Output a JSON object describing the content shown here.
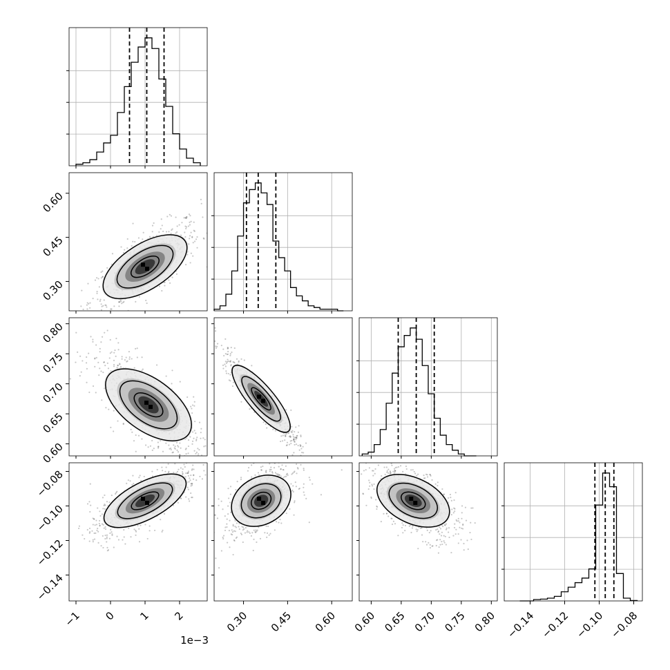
{
  "chart_data": {
    "type": "corner",
    "title": "",
    "grid": true,
    "parameters": [
      {
        "range": [
          -1.2,
          2.8
        ],
        "ticks": [
          -1,
          0,
          1,
          2
        ],
        "tick_labels": [
          "−1",
          "0",
          "1",
          "2"
        ],
        "offset_label": "1e−3"
      },
      {
        "range": [
          0.2,
          0.67
        ],
        "ticks": [
          0.3,
          0.45,
          0.6
        ],
        "tick_labels": [
          "0.30",
          "0.45",
          "0.60"
        ]
      },
      {
        "range": [
          0.58,
          0.81
        ],
        "ticks": [
          0.6,
          0.65,
          0.7,
          0.75,
          0.8
        ],
        "tick_labels": [
          "0.60",
          "0.65",
          "0.70",
          "0.75",
          "0.80"
        ]
      },
      {
        "range": [
          -0.155,
          -0.075
        ],
        "ticks": [
          -0.14,
          -0.12,
          -0.1,
          -0.08
        ],
        "tick_labels": [
          "−0.14",
          "−0.12",
          "−0.10",
          "−0.08"
        ]
      }
    ],
    "histograms": [
      {
        "param": 0,
        "bin_edges": [
          -1.0,
          -0.8,
          -0.6,
          -0.4,
          -0.2,
          0.0,
          0.2,
          0.4,
          0.6,
          0.8,
          1.0,
          1.2,
          1.4,
          1.6,
          1.8,
          2.0,
          2.2,
          2.4,
          2.6
        ],
        "counts": [
          1,
          2,
          4,
          9,
          15,
          20,
          35,
          52,
          68,
          78,
          84,
          77,
          57,
          39,
          21,
          11,
          5,
          2
        ],
        "quantiles": [
          0.55,
          1.05,
          1.55
        ]
      },
      {
        "param": 1,
        "bin_edges": [
          0.2,
          0.22,
          0.24,
          0.26,
          0.28,
          0.3,
          0.32,
          0.34,
          0.36,
          0.38,
          0.4,
          0.42,
          0.44,
          0.46,
          0.48,
          0.5,
          0.52,
          0.54,
          0.56,
          0.58,
          0.6,
          0.62,
          0.64
        ],
        "counts": [
          1,
          3,
          10,
          24,
          45,
          65,
          73,
          77,
          71,
          64,
          42,
          32,
          24,
          14,
          9,
          6,
          3,
          2,
          1,
          1,
          1,
          0
        ],
        "quantiles": [
          0.31,
          0.35,
          0.41
        ]
      },
      {
        "param": 2,
        "bin_edges": [
          0.585,
          0.595,
          0.605,
          0.615,
          0.625,
          0.635,
          0.645,
          0.655,
          0.665,
          0.675,
          0.685,
          0.695,
          0.705,
          0.715,
          0.725,
          0.735,
          0.745,
          0.755,
          0.765,
          0.775
        ],
        "counts": [
          1,
          2,
          6,
          14,
          28,
          44,
          58,
          64,
          68,
          62,
          48,
          33,
          20,
          11,
          6,
          3,
          1,
          0,
          0
        ],
        "quantiles": [
          0.645,
          0.675,
          0.705
        ]
      },
      {
        "param": 3,
        "bin_edges": [
          -0.146,
          -0.142,
          -0.138,
          -0.134,
          -0.13,
          -0.126,
          -0.122,
          -0.118,
          -0.114,
          -0.11,
          -0.106,
          -0.102,
          -0.098,
          -0.094,
          -0.09,
          -0.086,
          -0.082,
          -0.078
        ],
        "counts": [
          0,
          0,
          0.3,
          0.4,
          0.6,
          1,
          2,
          3,
          4,
          5,
          7,
          21,
          28,
          25,
          6,
          0.6,
          0.1
        ],
        "quantiles": [
          -0.1025,
          -0.0965,
          -0.0915
        ]
      }
    ],
    "pairs": [
      {
        "x_param": 0,
        "y_param": 1,
        "center": [
          1.0,
          0.35
        ],
        "sd": [
          0.5,
          0.05
        ],
        "rho": 0.75
      },
      {
        "x_param": 0,
        "y_param": 2,
        "center": [
          1.1,
          0.665
        ],
        "sd": [
          0.5,
          0.028
        ],
        "rho": -0.75
      },
      {
        "x_param": 1,
        "y_param": 2,
        "center": [
          0.36,
          0.675
        ],
        "sd": [
          0.04,
          0.025
        ],
        "rho": -0.93
      },
      {
        "x_param": 0,
        "y_param": 3,
        "center": [
          1.0,
          -0.097
        ],
        "sd": [
          0.5,
          0.007
        ],
        "rho": 0.75
      },
      {
        "x_param": 1,
        "y_param": 3,
        "center": [
          0.36,
          -0.097
        ],
        "sd": [
          0.04,
          0.007
        ],
        "rho": 0.55
      },
      {
        "x_param": 2,
        "y_param": 3,
        "center": [
          0.67,
          -0.097
        ],
        "sd": [
          0.025,
          0.007
        ],
        "rho": -0.6
      }
    ],
    "contour_levels": [
      0.5,
      1.0,
      1.5
    ],
    "colors": {
      "line": "#000000",
      "grid": "#b0b0b0",
      "frame": "#000000",
      "points": "#000000"
    }
  }
}
